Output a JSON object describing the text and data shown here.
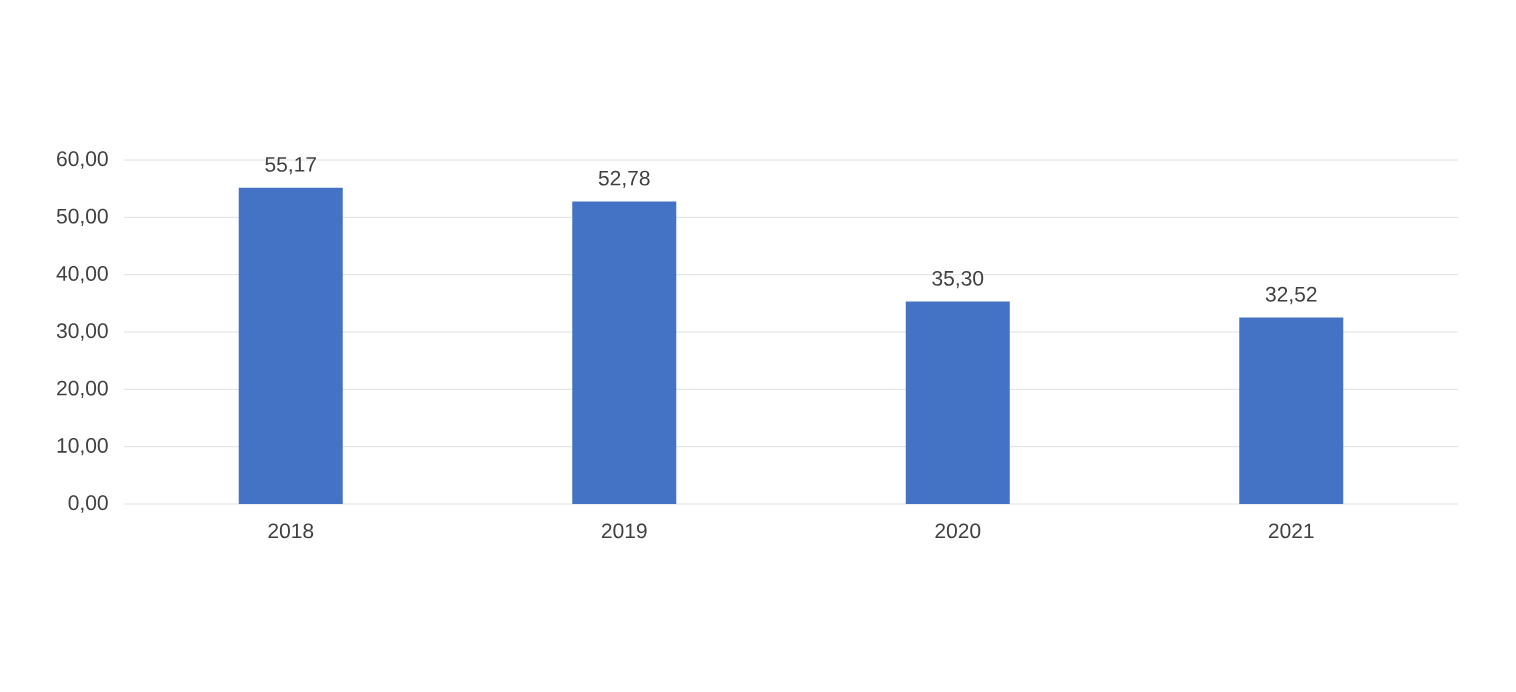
{
  "chart_data": {
    "type": "bar",
    "categories": [
      "2018",
      "2019",
      "2020",
      "2021"
    ],
    "values": [
      55.17,
      52.78,
      35.3,
      32.52
    ],
    "value_labels": [
      "55,17",
      "52,78",
      "35,30",
      "32,52"
    ],
    "color": "#4472c4",
    "ylim": [
      0,
      60
    ],
    "yticks": [
      {
        "value": 0,
        "label": "0,00"
      },
      {
        "value": 10,
        "label": "10,00"
      },
      {
        "value": 20,
        "label": "20,00"
      },
      {
        "value": 30,
        "label": "30,00"
      },
      {
        "value": 40,
        "label": "40,00"
      },
      {
        "value": 50,
        "label": "50,00"
      },
      {
        "value": 60,
        "label": "60,00"
      }
    ],
    "grid": "y"
  }
}
